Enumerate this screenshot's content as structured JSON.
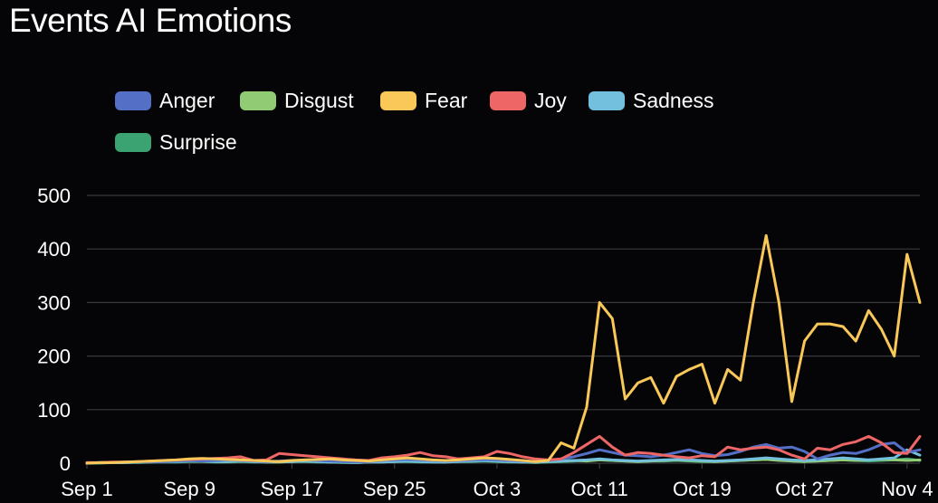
{
  "colors": {
    "background": "#050507",
    "grid": "#3a3a3f",
    "text": "#ffffff"
  },
  "chart_data": {
    "type": "line",
    "title": "Events AI Emotions",
    "xlabel": "",
    "ylabel": "",
    "ylim": [
      0,
      500
    ],
    "yticks": [
      0,
      100,
      200,
      300,
      400,
      500
    ],
    "grid": true,
    "legend_position": "top",
    "xtick_labels": [
      "Sep 1",
      "Sep 9",
      "Sep 17",
      "Sep 25",
      "Oct 3",
      "Oct 11",
      "Oct 19",
      "Oct 27",
      "Nov 4"
    ],
    "x": [
      "Sep 1",
      "Sep 2",
      "Sep 3",
      "Sep 4",
      "Sep 5",
      "Sep 6",
      "Sep 7",
      "Sep 8",
      "Sep 9",
      "Sep 10",
      "Sep 11",
      "Sep 12",
      "Sep 13",
      "Sep 14",
      "Sep 15",
      "Sep 16",
      "Sep 17",
      "Sep 18",
      "Sep 19",
      "Sep 20",
      "Sep 21",
      "Sep 22",
      "Sep 23",
      "Sep 24",
      "Sep 25",
      "Sep 26",
      "Sep 27",
      "Sep 28",
      "Sep 29",
      "Sep 30",
      "Oct 1",
      "Oct 2",
      "Oct 3",
      "Oct 4",
      "Oct 5",
      "Oct 6",
      "Oct 7",
      "Oct 8",
      "Oct 9",
      "Oct 10",
      "Oct 11",
      "Oct 12",
      "Oct 13",
      "Oct 14",
      "Oct 15",
      "Oct 16",
      "Oct 17",
      "Oct 18",
      "Oct 19",
      "Oct 20",
      "Oct 21",
      "Oct 22",
      "Oct 23",
      "Oct 24",
      "Oct 25",
      "Oct 26",
      "Oct 27",
      "Oct 28",
      "Oct 29",
      "Oct 30",
      "Oct 31",
      "Nov 1",
      "Nov 2",
      "Nov 3",
      "Nov 4",
      "Nov 5"
    ],
    "series": [
      {
        "name": "Anger",
        "color": "#5470c6",
        "values": [
          1,
          1,
          1,
          2,
          2,
          3,
          3,
          4,
          5,
          4,
          5,
          6,
          5,
          4,
          3,
          4,
          5,
          6,
          5,
          4,
          3,
          2,
          3,
          5,
          6,
          7,
          6,
          5,
          4,
          5,
          6,
          7,
          6,
          5,
          4,
          3,
          5,
          8,
          12,
          18,
          25,
          20,
          15,
          14,
          12,
          15,
          20,
          25,
          18,
          14,
          16,
          22,
          30,
          35,
          28,
          30,
          22,
          8,
          15,
          20,
          18,
          25,
          35,
          38,
          20,
          25
        ]
      },
      {
        "name": "Disgust",
        "color": "#91cc75",
        "values": [
          0,
          1,
          1,
          1,
          2,
          3,
          4,
          5,
          5,
          4,
          3,
          3,
          4,
          3,
          2,
          2,
          3,
          4,
          3,
          2,
          2,
          1,
          2,
          3,
          4,
          5,
          4,
          3,
          2,
          8,
          6,
          5,
          4,
          3,
          2,
          2,
          3,
          4,
          5,
          4,
          6,
          5,
          4,
          3,
          4,
          5,
          6,
          5,
          4,
          3,
          4,
          5,
          6,
          7,
          5,
          4,
          3,
          4,
          5,
          6,
          5,
          6,
          7,
          6,
          5,
          6
        ]
      },
      {
        "name": "Fear",
        "color": "#fac858",
        "values": [
          0,
          1,
          1,
          2,
          3,
          4,
          5,
          6,
          8,
          9,
          8,
          7,
          6,
          5,
          4,
          3,
          5,
          6,
          7,
          8,
          6,
          5,
          4,
          6,
          8,
          10,
          8,
          6,
          5,
          6,
          8,
          10,
          9,
          7,
          5,
          3,
          5,
          38,
          28,
          105,
          300,
          270,
          120,
          150,
          160,
          112,
          162,
          175,
          185,
          112,
          175,
          155,
          300,
          425,
          300,
          115,
          228,
          260,
          260,
          255,
          228,
          285,
          250,
          200,
          390,
          300
        ]
      },
      {
        "name": "Joy",
        "color": "#ee6666",
        "values": [
          1,
          1,
          2,
          2,
          3,
          4,
          5,
          6,
          7,
          8,
          9,
          10,
          12,
          5,
          6,
          18,
          16,
          14,
          12,
          10,
          8,
          6,
          5,
          10,
          12,
          15,
          20,
          14,
          12,
          8,
          10,
          12,
          22,
          18,
          12,
          8,
          6,
          8,
          20,
          35,
          50,
          30,
          15,
          20,
          18,
          15,
          12,
          10,
          14,
          12,
          30,
          25,
          28,
          30,
          25,
          15,
          8,
          28,
          25,
          35,
          40,
          50,
          38,
          20,
          18,
          50
        ]
      },
      {
        "name": "Sadness",
        "color": "#73c0de",
        "values": [
          0,
          1,
          1,
          1,
          2,
          2,
          3,
          3,
          4,
          4,
          3,
          3,
          4,
          3,
          2,
          3,
          3,
          4,
          3,
          2,
          2,
          1,
          2,
          2,
          3,
          4,
          3,
          2,
          2,
          3,
          4,
          5,
          4,
          3,
          2,
          2,
          3,
          4,
          5,
          6,
          8,
          6,
          5,
          4,
          5,
          6,
          7,
          6,
          5,
          4,
          5,
          6,
          8,
          10,
          8,
          6,
          5,
          6,
          8,
          10,
          8,
          6,
          8,
          10,
          25,
          15
        ]
      },
      {
        "name": "Surprise",
        "color": "#3ba272",
        "values": [
          0,
          0,
          1,
          1,
          1,
          2,
          2,
          2,
          3,
          3,
          2,
          2,
          3,
          2,
          2,
          2,
          3,
          3,
          2,
          2,
          1,
          1,
          2,
          2,
          3,
          3,
          2,
          2,
          2,
          3,
          3,
          4,
          3,
          2,
          2,
          1,
          2,
          3,
          4,
          5,
          6,
          5,
          4,
          3,
          4,
          4,
          5,
          4,
          3,
          3,
          4,
          5,
          6,
          7,
          6,
          4,
          3,
          4,
          5,
          6,
          5,
          4,
          5,
          6,
          8,
          5
        ]
      }
    ]
  }
}
